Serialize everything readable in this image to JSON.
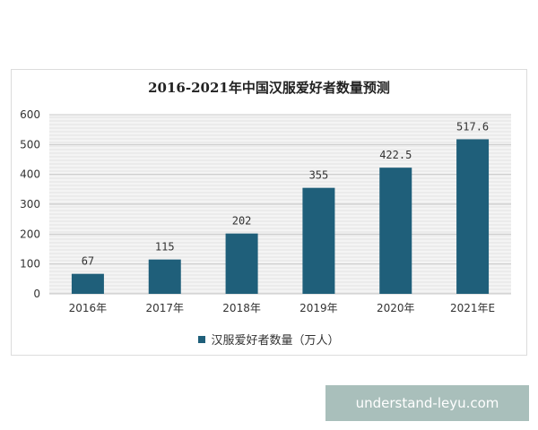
{
  "chart_data": {
    "type": "bar",
    "title": "2016-2021年中国汉服爱好者数量预测",
    "categories": [
      "2016年",
      "2017年",
      "2018年",
      "2019年",
      "2020年",
      "2021年E"
    ],
    "series": [
      {
        "name": "汉服爱好者数量（万人）",
        "values": [
          67,
          115,
          202,
          355,
          422.5,
          517.6
        ],
        "labels": [
          "67",
          "115",
          "202",
          "355",
          "422.5",
          "517.6"
        ]
      }
    ],
    "ylim": [
      0,
      600
    ],
    "yticks": [
      "0",
      "100",
      "200",
      "300",
      "400",
      "500",
      "600"
    ],
    "grid": true,
    "legend_position": "bottom",
    "bar_color": "#1f5f7a"
  },
  "watermark": "understand-leyu.com"
}
